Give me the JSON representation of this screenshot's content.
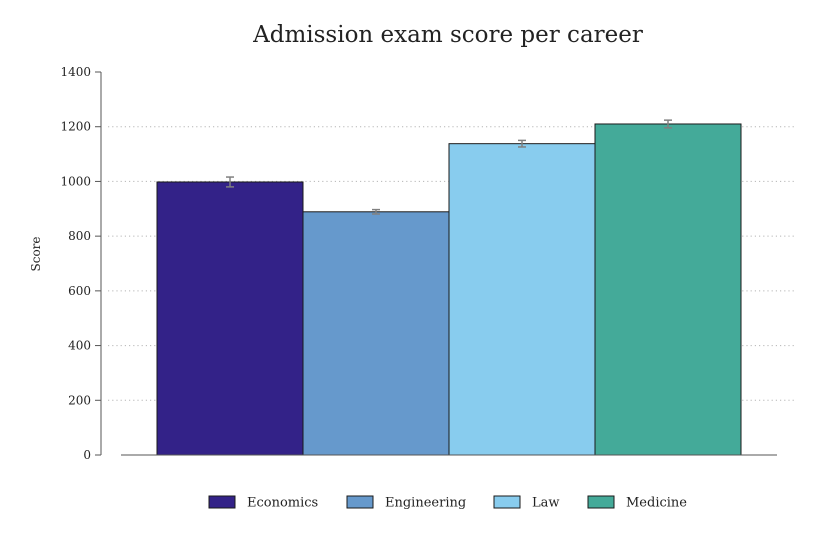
{
  "chart_data": {
    "type": "bar",
    "title": "Admission exam score per career",
    "xlabel": "",
    "ylabel": "Score",
    "ylim": [
      0,
      1400
    ],
    "yticks": [
      0,
      200,
      400,
      600,
      800,
      1000,
      1200,
      1400
    ],
    "grid": "horizontal dotted",
    "legend_position": "bottom",
    "categories": [
      "Economics",
      "Engineering",
      "Law",
      "Medicine"
    ],
    "values": [
      998,
      889,
      1138,
      1210
    ],
    "errors": [
      18,
      8,
      12,
      14
    ],
    "colors": [
      "#332288",
      "#6699cc",
      "#88ccee",
      "#44aa99"
    ],
    "error_color": "#808080"
  }
}
